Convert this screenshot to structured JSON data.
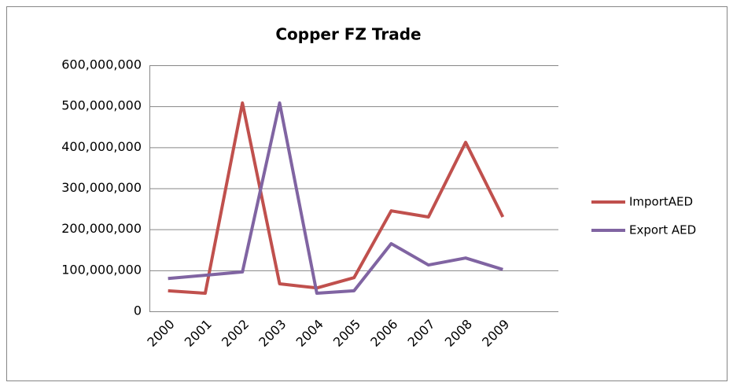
{
  "chart_data": {
    "type": "line",
    "title": "Copper FZ Trade",
    "categories": [
      "2000",
      "2001",
      "2002",
      "2003",
      "2004",
      "2005",
      "2006",
      "2007",
      "2008",
      "2009"
    ],
    "series": [
      {
        "name": "ImportAED",
        "color": "#c0504d",
        "values": [
          50000000,
          44000000,
          508000000,
          67000000,
          57000000,
          82000000,
          245000000,
          230000000,
          412000000,
          230000000
        ]
      },
      {
        "name": "Export AED",
        "color": "#8064a2",
        "values": [
          80000000,
          88000000,
          96000000,
          508000000,
          44000000,
          50000000,
          165000000,
          113000000,
          130000000,
          102000000
        ]
      }
    ],
    "ylim": [
      0,
      600000000
    ],
    "yticks": [
      0,
      {
        "value": 100000000,
        "label": "100,000,000"
      },
      {
        "value": 200000000,
        "label": "200,000,000"
      },
      {
        "value": 300000000,
        "label": "300,000,000"
      },
      {
        "value": 400000000,
        "label": "400,000,000"
      },
      {
        "value": 500000000,
        "label": "500,000,000"
      },
      {
        "value": 600000000,
        "label": "600,000,000"
      }
    ],
    "grid": true,
    "legend": "right"
  }
}
